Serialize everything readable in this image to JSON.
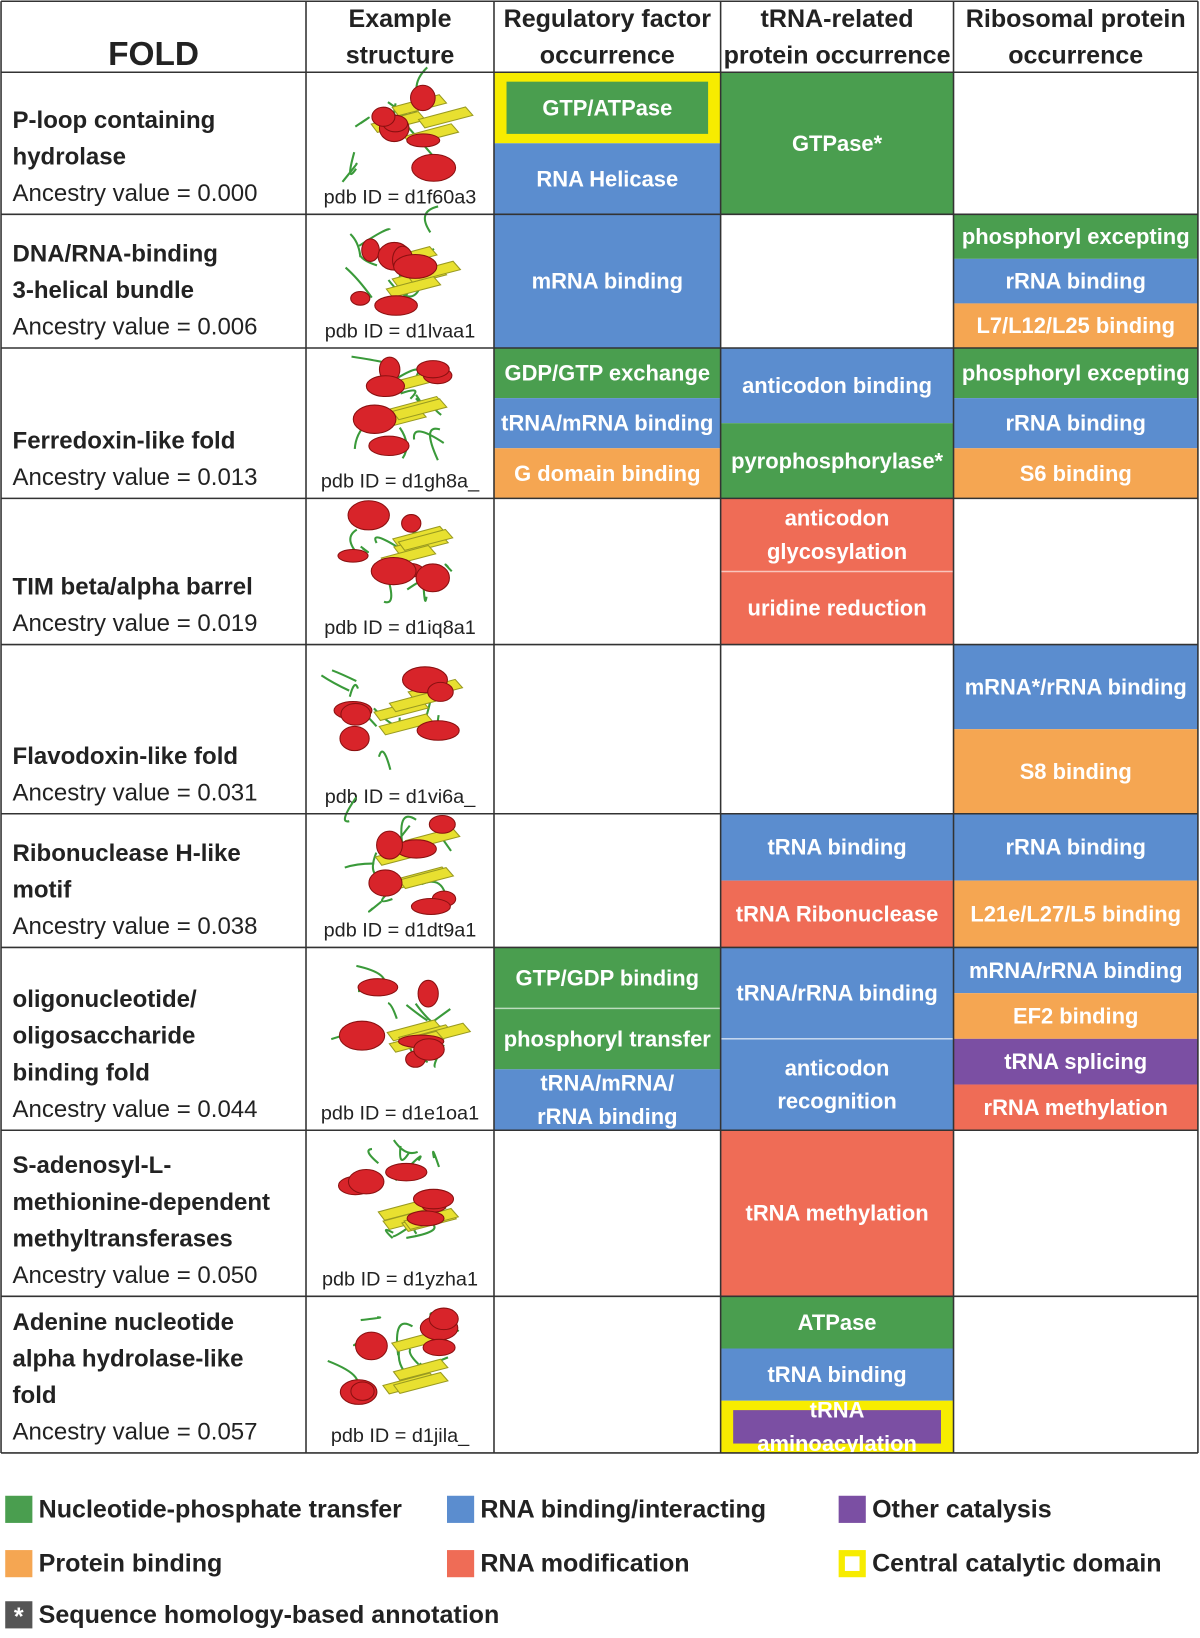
{
  "header": [
    "FOLD",
    [
      "Example",
      "structure"
    ],
    [
      "Regulatory factor",
      "occurrence"
    ],
    [
      "tRNA-related",
      "protein occurrence"
    ],
    [
      "Ribosomal protein",
      "occurrence"
    ]
  ],
  "rows": [
    {
      "fold": [
        "P-loop containing",
        "hydrolase"
      ],
      "ancestry": "Ancestry value = 0.000",
      "pdb": "pdb ID = d1f60a3",
      "regulatory": [
        {
          "lines": [
            "GTP/ATPase"
          ],
          "color": "#4a9e4f",
          "central": true
        },
        {
          "lines": [
            "RNA Helicase"
          ],
          "color": "#5b8dcf"
        }
      ],
      "trna": [
        {
          "lines": [
            "GTPase*"
          ],
          "color": "#4a9e4f"
        }
      ],
      "ribosomal": []
    },
    {
      "fold": [
        "DNA/RNA-binding",
        "3-helical bundle"
      ],
      "ancestry": "Ancestry value = 0.006",
      "pdb": "pdb ID = d1lvaa1",
      "regulatory": [
        {
          "lines": [
            "mRNA binding"
          ],
          "color": "#5b8dcf"
        }
      ],
      "trna": [],
      "ribosomal": [
        {
          "lines": [
            "phosphoryl excepting"
          ],
          "color": "#4a9e4f"
        },
        {
          "lines": [
            "rRNA binding"
          ],
          "color": "#5b8dcf"
        },
        {
          "lines": [
            "L7/L12/L25 binding"
          ],
          "color": "#f5a652"
        }
      ]
    },
    {
      "fold": [
        "Ferredoxin-like fold"
      ],
      "ancestry": "Ancestry value = 0.013",
      "pdb": "pdb ID = d1gh8a_",
      "regulatory": [
        {
          "lines": [
            "GDP/GTP exchange"
          ],
          "color": "#4a9e4f"
        },
        {
          "lines": [
            "tRNA/mRNA binding"
          ],
          "color": "#5b8dcf"
        },
        {
          "lines": [
            "G domain binding"
          ],
          "color": "#f5a652"
        }
      ],
      "trna": [
        {
          "lines": [
            "anticodon binding"
          ],
          "color": "#5b8dcf"
        },
        {
          "lines": [
            "pyrophosphorylase*"
          ],
          "color": "#4a9e4f"
        }
      ],
      "ribosomal": [
        {
          "lines": [
            "phosphoryl excepting"
          ],
          "color": "#4a9e4f"
        },
        {
          "lines": [
            "rRNA binding"
          ],
          "color": "#5b8dcf"
        },
        {
          "lines": [
            "S6 binding"
          ],
          "color": "#f5a652"
        }
      ]
    },
    {
      "fold": [
        "TIM beta/alpha barrel"
      ],
      "ancestry": "Ancestry value = 0.019",
      "pdb": "pdb ID = d1iq8a1",
      "regulatory": [],
      "trna": [
        {
          "lines": [
            "anticodon",
            "glycosylation"
          ],
          "color": "#ef6c56"
        },
        {
          "lines": [
            "uridine reduction"
          ],
          "color": "#ef6c56"
        }
      ],
      "ribosomal": []
    },
    {
      "fold": [
        "Flavodoxin-like fold"
      ],
      "ancestry": "Ancestry value = 0.031",
      "pdb": "pdb ID = d1vi6a_",
      "regulatory": [],
      "trna": [],
      "ribosomal": [
        {
          "lines": [
            "mRNA*/rRNA binding"
          ],
          "color": "#5b8dcf"
        },
        {
          "lines": [
            "S8 binding"
          ],
          "color": "#f5a652"
        }
      ]
    },
    {
      "fold": [
        "Ribonuclease H-like",
        "motif"
      ],
      "ancestry": "Ancestry value = 0.038",
      "pdb": "pdb ID = d1dt9a1",
      "regulatory": [],
      "trna": [
        {
          "lines": [
            "tRNA binding"
          ],
          "color": "#5b8dcf"
        },
        {
          "lines": [
            "tRNA Ribonuclease"
          ],
          "color": "#ef6c56"
        }
      ],
      "ribosomal": [
        {
          "lines": [
            "rRNA binding"
          ],
          "color": "#5b8dcf"
        },
        {
          "lines": [
            "L21e/L27/L5 binding"
          ],
          "color": "#f5a652"
        }
      ]
    },
    {
      "fold": [
        "oligonucleotide/",
        "oligosaccharide",
        "binding fold"
      ],
      "ancestry": "Ancestry value = 0.044",
      "pdb": "pdb ID = d1e1oa1",
      "regulatory": [
        {
          "lines": [
            "GTP/GDP binding"
          ],
          "color": "#4a9e4f"
        },
        {
          "lines": [
            "phosphoryl transfer"
          ],
          "color": "#4a9e4f"
        },
        {
          "lines": [
            "tRNA/mRNA/",
            "rRNA binding"
          ],
          "color": "#5b8dcf"
        }
      ],
      "trna": [
        {
          "lines": [
            "tRNA/rRNA binding"
          ],
          "color": "#5b8dcf"
        },
        {
          "lines": [
            "anticodon",
            "recognition"
          ],
          "color": "#5b8dcf"
        }
      ],
      "ribosomal": [
        {
          "lines": [
            "mRNA/rRNA binding"
          ],
          "color": "#5b8dcf"
        },
        {
          "lines": [
            "EF2 binding"
          ],
          "color": "#f5a652"
        },
        {
          "lines": [
            "tRNA splicing"
          ],
          "color": "#7b4fa3"
        },
        {
          "lines": [
            "rRNA methylation"
          ],
          "color": "#ef6c56"
        }
      ]
    },
    {
      "fold": [
        "S-adenosyl-L-",
        "methionine-dependent",
        "methyltransferases"
      ],
      "ancestry": "Ancestry value = 0.050",
      "pdb": "pdb ID = d1yzha1",
      "regulatory": [],
      "trna": [
        {
          "lines": [
            "tRNA methylation"
          ],
          "color": "#ef6c56"
        }
      ],
      "ribosomal": []
    },
    {
      "fold": [
        "Adenine nucleotide",
        "alpha hydrolase-like",
        "fold"
      ],
      "ancestry": "Ancestry value = 0.057",
      "pdb": "pdb ID = d1jila_",
      "regulatory": [],
      "trna": [
        {
          "lines": [
            "ATPase"
          ],
          "color": "#4a9e4f"
        },
        {
          "lines": [
            "tRNA binding"
          ],
          "color": "#5b8dcf"
        },
        {
          "lines": [
            "tRNA",
            "aminoacylation"
          ],
          "color": "#7b4fa3",
          "central": true
        }
      ],
      "ribosomal": []
    }
  ],
  "legend": {
    "items": [
      {
        "name": "Nucleotide-phosphate transfer",
        "color": "#4a9e4f"
      },
      {
        "name": "RNA binding/interacting",
        "color": "#5b8dcf"
      },
      {
        "name": "Other catalysis",
        "color": "#7b4fa3"
      },
      {
        "name": "Protein binding",
        "color": "#f5a652"
      },
      {
        "name": "RNA modification",
        "color": "#ef6c56"
      }
    ],
    "central": {
      "name": "Central catalytic domain",
      "color": "#f7ec00"
    },
    "asterisk": {
      "symbol": "*",
      "name": "Sequence homology-based annotation"
    }
  }
}
